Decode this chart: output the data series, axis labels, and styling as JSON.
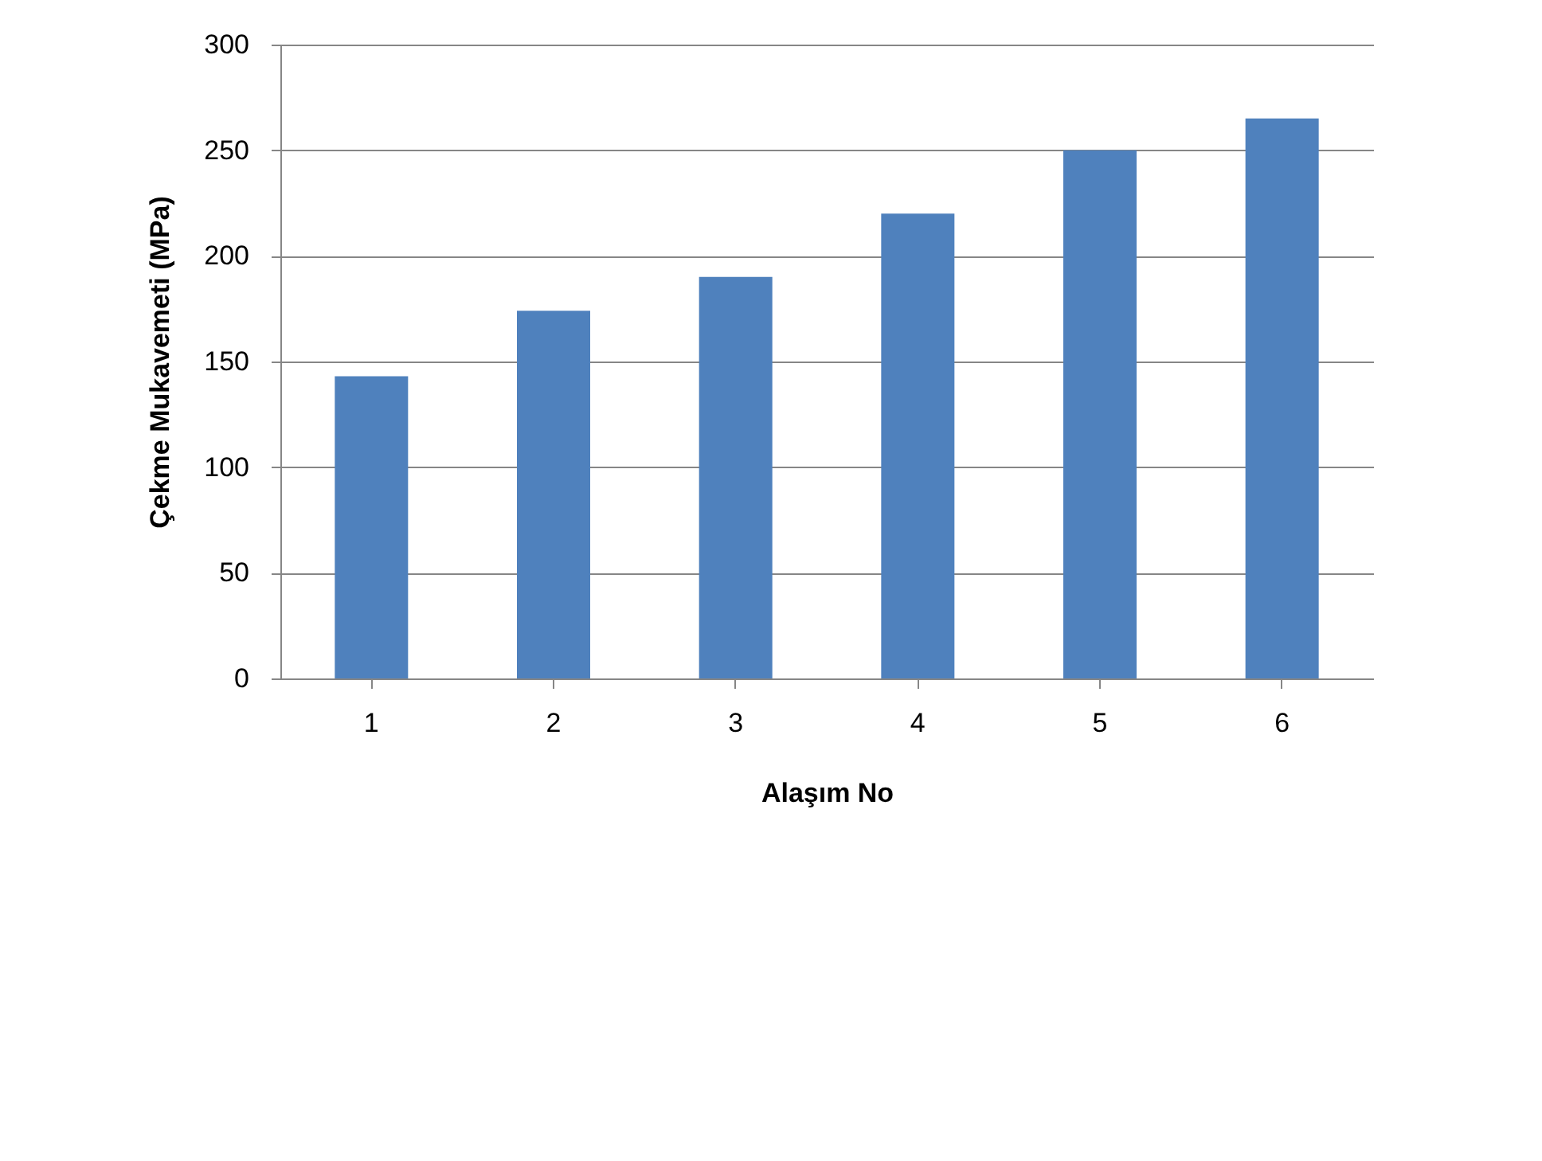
{
  "chart_data": {
    "type": "bar",
    "xlabel": "Alaşım No",
    "ylabel": "Çekme Mukavemeti (MPa)",
    "categories": [
      "1",
      "2",
      "3",
      "4",
      "5",
      "6"
    ],
    "values": [
      143,
      174,
      190,
      220,
      250,
      265
    ],
    "color": "#4f81bd",
    "ylim": [
      0,
      300
    ],
    "yticks": [
      0,
      50,
      100,
      150,
      200,
      250,
      300
    ],
    "grid": "y"
  }
}
